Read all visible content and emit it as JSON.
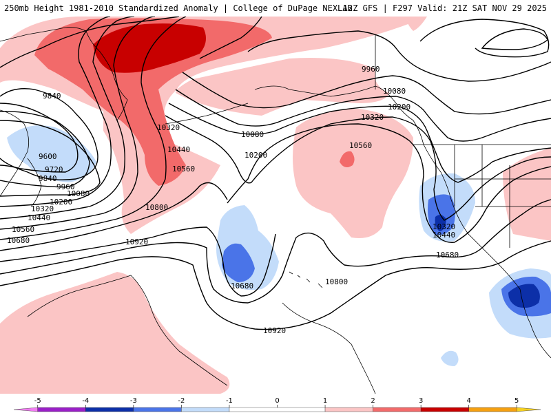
{
  "header": {
    "title_left": "250mb Height 1981-2010 Standardized Anomaly | College of DuPage NEXLAB",
    "title_right": "12Z GFS | F297 Valid: 21Z SAT NOV 29 2025"
  },
  "colors": {
    "pos1": "#fbc5c5",
    "pos2": "#f26a6a",
    "pos3": "#c80000",
    "neg1": "#c3dcfa",
    "neg2": "#4a74e8",
    "neg3": "#0c2fa8",
    "contour": "#000000",
    "coast": "#000000"
  },
  "contour_labels": [
    {
      "id": "9840-a",
      "text": "9840"
    },
    {
      "id": "9600",
      "text": "9600"
    },
    {
      "id": "9720",
      "text": "9720"
    },
    {
      "id": "9840-b",
      "text": "9840"
    },
    {
      "id": "9960-a",
      "text": "9960"
    },
    {
      "id": "10080-a",
      "text": "10080"
    },
    {
      "id": "10200-a",
      "text": "10200"
    },
    {
      "id": "10320-a",
      "text": "10320"
    },
    {
      "id": "10440-a",
      "text": "10440"
    },
    {
      "id": "10560-a",
      "text": "10560"
    },
    {
      "id": "10680-a",
      "text": "10680"
    },
    {
      "id": "10320-b",
      "text": "10320"
    },
    {
      "id": "10440-b",
      "text": "10440"
    },
    {
      "id": "10560-b",
      "text": "10560"
    },
    {
      "id": "10800-a",
      "text": "10800"
    },
    {
      "id": "10920-a",
      "text": "10920"
    },
    {
      "id": "10080-b",
      "text": "10080"
    },
    {
      "id": "10200-b",
      "text": "10200"
    },
    {
      "id": "9960-b",
      "text": "9960"
    },
    {
      "id": "10080-c",
      "text": "10080"
    },
    {
      "id": "10200-c",
      "text": "10200"
    },
    {
      "id": "10320-c",
      "text": "10320"
    },
    {
      "id": "10560-c",
      "text": "10560"
    },
    {
      "id": "10320-d",
      "text": "10320"
    },
    {
      "id": "10440-c",
      "text": "10440"
    },
    {
      "id": "10680-b",
      "text": "10680"
    },
    {
      "id": "10680-c",
      "text": "10680"
    },
    {
      "id": "10800-b",
      "text": "10800"
    },
    {
      "id": "10920-b",
      "text": "10920"
    }
  ],
  "colorbar": {
    "ticks": [
      "-5",
      "-4",
      "-3",
      "-2",
      "-1",
      "0",
      "1",
      "2",
      "3",
      "4",
      "5"
    ],
    "bins": [
      {
        "from": -5.5,
        "to": -5,
        "color": "#f07cf0"
      },
      {
        "from": -5,
        "to": -4,
        "color": "#9a1fc8"
      },
      {
        "from": -4,
        "to": -3,
        "color": "#0c2fa8"
      },
      {
        "from": -3,
        "to": -2,
        "color": "#4a74e8"
      },
      {
        "from": -2,
        "to": -1,
        "color": "#c3dcfa"
      },
      {
        "from": -1,
        "to": 1,
        "color": "#ffffff"
      },
      {
        "from": 1,
        "to": 2,
        "color": "#fbc5c5"
      },
      {
        "from": 2,
        "to": 3,
        "color": "#f26a6a"
      },
      {
        "from": 3,
        "to": 4,
        "color": "#c80000"
      },
      {
        "from": 4,
        "to": 5,
        "color": "#f5a010"
      },
      {
        "from": 5,
        "to": 5.5,
        "color": "#f5d020"
      }
    ]
  }
}
